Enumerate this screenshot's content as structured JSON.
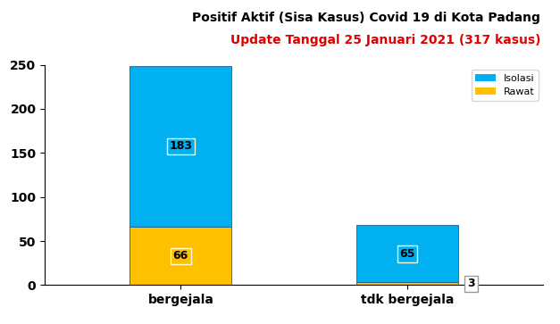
{
  "chart_data": {
    "type": "bar",
    "title": "Positif Aktif (Sisa Kasus) Covid 19 di Kota Padang",
    "subtitle": "Update Tanggal 25 Januari 2021 (317 kasus)",
    "categories": [
      "bergejala",
      "tdk bergejala"
    ],
    "series": [
      {
        "name": "Rawat",
        "color": "#ffc000",
        "values": [
          66,
          3
        ]
      },
      {
        "name": "Isolasi",
        "color": "#00b0f0",
        "values": [
          183,
          65
        ]
      }
    ],
    "stacked": true,
    "data_labels": true,
    "legend": "upper right",
    "ylim": [
      0,
      250
    ],
    "yticks": [
      0,
      50,
      100,
      150,
      200,
      250
    ],
    "grid": false
  }
}
